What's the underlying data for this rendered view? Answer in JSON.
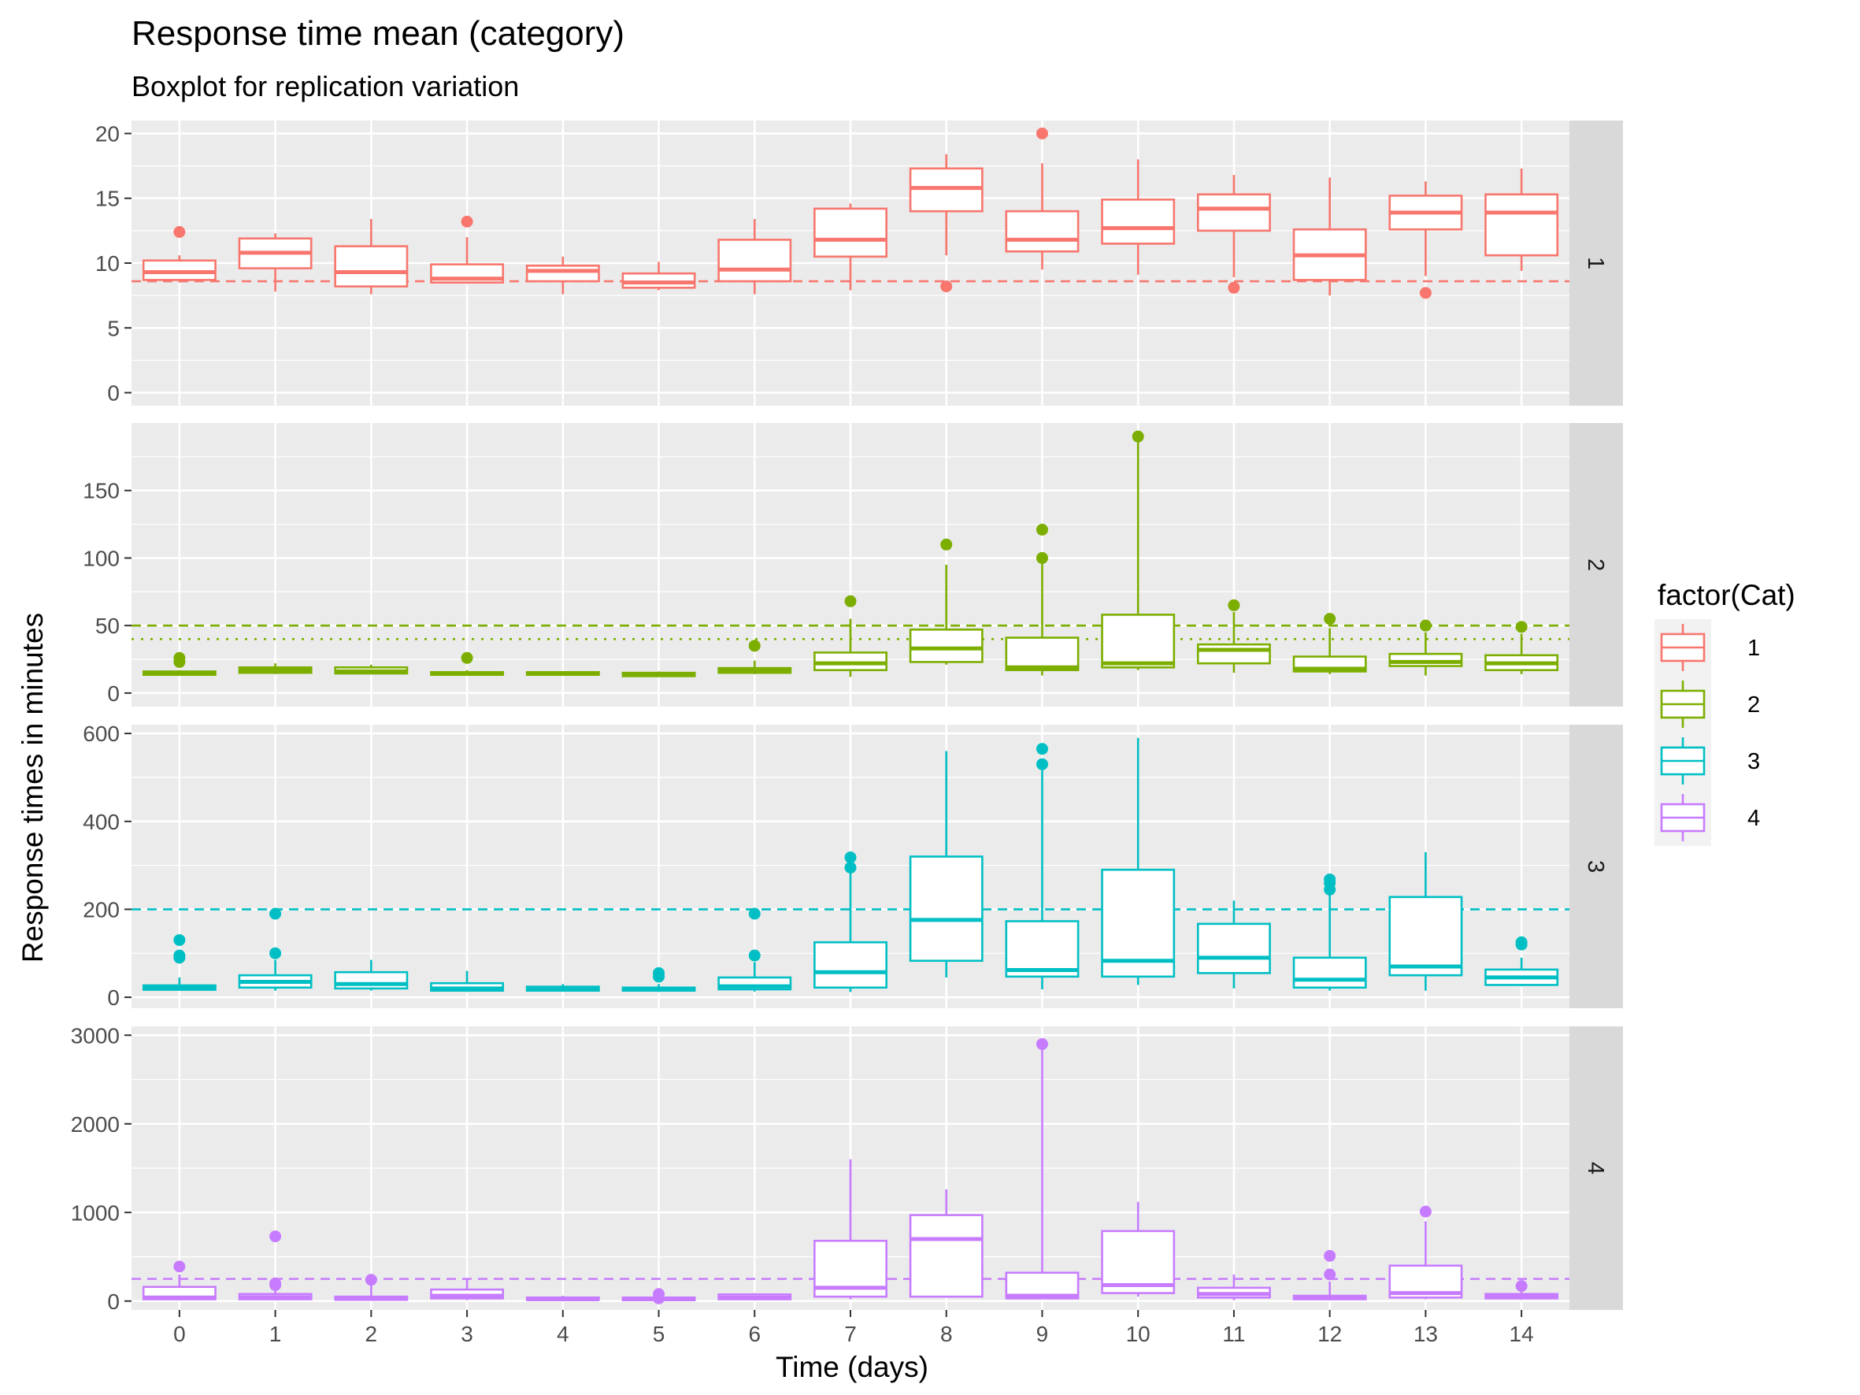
{
  "chart_data": {
    "type": "boxplot",
    "title": "Response time mean (category)",
    "subtitle": "Boxplot for replication variation",
    "xlabel": "Time (days)",
    "ylabel": "Response times in minutes",
    "x_categories": [
      "0",
      "1",
      "2",
      "3",
      "4",
      "5",
      "6",
      "7",
      "8",
      "9",
      "10",
      "11",
      "12",
      "13",
      "14"
    ],
    "legend": {
      "title": "factor(Cat)",
      "placement": "right",
      "entries": [
        "1",
        "2",
        "3",
        "4"
      ]
    },
    "grid": true,
    "facets": [
      {
        "label": "1",
        "color": "#F8766D",
        "ylim": [
          -1,
          21
        ],
        "yticks": [
          0,
          5,
          10,
          15,
          20
        ],
        "reference_lines": [
          {
            "value": 8.6,
            "style": "dashed"
          }
        ],
        "boxes": [
          {
            "x": "0",
            "min": 8.5,
            "q1": 8.7,
            "median": 9.3,
            "q3": 10.2,
            "max": 10.6,
            "outliers": [
              12.4
            ]
          },
          {
            "x": "1",
            "min": 7.8,
            "q1": 9.6,
            "median": 10.8,
            "q3": 11.9,
            "max": 12.3,
            "outliers": []
          },
          {
            "x": "2",
            "min": 7.6,
            "q1": 8.2,
            "median": 9.3,
            "q3": 11.3,
            "max": 13.4,
            "outliers": []
          },
          {
            "x": "3",
            "min": 8.4,
            "q1": 8.5,
            "median": 8.8,
            "q3": 9.9,
            "max": 12.0,
            "outliers": [
              13.2
            ]
          },
          {
            "x": "4",
            "min": 7.6,
            "q1": 8.6,
            "median": 9.4,
            "q3": 9.8,
            "max": 10.5,
            "outliers": []
          },
          {
            "x": "5",
            "min": 7.9,
            "q1": 8.1,
            "median": 8.5,
            "q3": 9.2,
            "max": 10.1,
            "outliers": []
          },
          {
            "x": "6",
            "min": 7.6,
            "q1": 8.6,
            "median": 9.5,
            "q3": 11.8,
            "max": 13.4,
            "outliers": []
          },
          {
            "x": "7",
            "min": 7.9,
            "q1": 10.5,
            "median": 11.8,
            "q3": 14.2,
            "max": 14.6,
            "outliers": []
          },
          {
            "x": "8",
            "min": 10.6,
            "q1": 14.0,
            "median": 15.8,
            "q3": 17.3,
            "max": 18.4,
            "outliers": [
              8.2
            ]
          },
          {
            "x": "9",
            "min": 9.5,
            "q1": 10.9,
            "median": 11.8,
            "q3": 14.0,
            "max": 17.7,
            "outliers": [
              20.0
            ]
          },
          {
            "x": "10",
            "min": 9.1,
            "q1": 11.5,
            "median": 12.7,
            "q3": 14.9,
            "max": 18.0,
            "outliers": []
          },
          {
            "x": "11",
            "min": 8.9,
            "q1": 12.5,
            "median": 14.2,
            "q3": 15.3,
            "max": 16.8,
            "outliers": [
              8.1
            ]
          },
          {
            "x": "12",
            "min": 7.5,
            "q1": 8.7,
            "median": 10.6,
            "q3": 12.6,
            "max": 16.6,
            "outliers": []
          },
          {
            "x": "13",
            "min": 9.0,
            "q1": 12.6,
            "median": 13.9,
            "q3": 15.2,
            "max": 16.3,
            "outliers": [
              7.7
            ]
          },
          {
            "x": "14",
            "min": 9.4,
            "q1": 10.6,
            "median": 13.9,
            "q3": 15.3,
            "max": 17.3,
            "outliers": []
          }
        ]
      },
      {
        "label": "2",
        "color": "#7CAE00",
        "ylim": [
          -10,
          200
        ],
        "yticks": [
          0,
          50,
          100,
          150
        ],
        "reference_lines": [
          {
            "value": 50,
            "style": "dashed"
          },
          {
            "value": 40,
            "style": "dotted"
          }
        ],
        "boxes": [
          {
            "x": "0",
            "min": 13,
            "q1": 13.5,
            "median": 15,
            "q3": 16,
            "max": 17,
            "outliers": [
              23,
              26
            ]
          },
          {
            "x": "1",
            "min": 14,
            "q1": 15,
            "median": 17,
            "q3": 19,
            "max": 22,
            "outliers": []
          },
          {
            "x": "2",
            "min": 14,
            "q1": 14.5,
            "median": 16,
            "q3": 19,
            "max": 21,
            "outliers": []
          },
          {
            "x": "3",
            "min": 13,
            "q1": 13.5,
            "median": 14.5,
            "q3": 15.5,
            "max": 17,
            "outliers": [
              26
            ]
          },
          {
            "x": "4",
            "min": 13,
            "q1": 13.5,
            "median": 14.5,
            "q3": 15.5,
            "max": 16,
            "outliers": []
          },
          {
            "x": "5",
            "min": 12,
            "q1": 12.5,
            "median": 14,
            "q3": 15,
            "max": 16,
            "outliers": []
          },
          {
            "x": "6",
            "min": 14,
            "q1": 15,
            "median": 17,
            "q3": 18.5,
            "max": 24,
            "outliers": [
              35
            ]
          },
          {
            "x": "7",
            "min": 12,
            "q1": 17,
            "median": 22,
            "q3": 30,
            "max": 55,
            "outliers": [
              68
            ]
          },
          {
            "x": "8",
            "min": 21,
            "q1": 23,
            "median": 33,
            "q3": 47,
            "max": 95,
            "outliers": [
              110
            ]
          },
          {
            "x": "9",
            "min": 13,
            "q1": 17,
            "median": 19,
            "q3": 41,
            "max": 98,
            "outliers": [
              100,
              121
            ]
          },
          {
            "x": "10",
            "min": 17,
            "q1": 19,
            "median": 22,
            "q3": 58,
            "max": 189,
            "outliers": [
              190
            ]
          },
          {
            "x": "11",
            "min": 15,
            "q1": 22,
            "median": 32,
            "q3": 36,
            "max": 60,
            "outliers": [
              65
            ]
          },
          {
            "x": "12",
            "min": 14,
            "q1": 16,
            "median": 18,
            "q3": 27,
            "max": 48,
            "outliers": [
              55
            ]
          },
          {
            "x": "13",
            "min": 13,
            "q1": 20,
            "median": 23,
            "q3": 29,
            "max": 45,
            "outliers": [
              50
            ]
          },
          {
            "x": "14",
            "min": 14,
            "q1": 17,
            "median": 22,
            "q3": 28,
            "max": 44,
            "outliers": [
              49
            ]
          }
        ]
      },
      {
        "label": "3",
        "color": "#00BFC4",
        "ylim": [
          -25,
          620
        ],
        "yticks": [
          0,
          200,
          400,
          600
        ],
        "reference_lines": [
          {
            "value": 200,
            "style": "dashed"
          }
        ],
        "boxes": [
          {
            "x": "0",
            "min": 15,
            "q1": 17,
            "median": 22,
            "q3": 27,
            "max": 45,
            "outliers": [
              90,
              95,
              130
            ]
          },
          {
            "x": "1",
            "min": 15,
            "q1": 22,
            "median": 35,
            "q3": 50,
            "max": 85,
            "outliers": [
              100,
              190
            ]
          },
          {
            "x": "2",
            "min": 15,
            "q1": 20,
            "median": 30,
            "q3": 57,
            "max": 85,
            "outliers": []
          },
          {
            "x": "3",
            "min": 12,
            "q1": 15,
            "median": 20,
            "q3": 32,
            "max": 60,
            "outliers": []
          },
          {
            "x": "4",
            "min": 13,
            "q1": 15,
            "median": 20,
            "q3": 24,
            "max": 30,
            "outliers": []
          },
          {
            "x": "5",
            "min": 12,
            "q1": 15,
            "median": 18,
            "q3": 22,
            "max": 30,
            "outliers": [
              47,
              55
            ]
          },
          {
            "x": "6",
            "min": 13,
            "q1": 18,
            "median": 25,
            "q3": 45,
            "max": 80,
            "outliers": [
              95,
              190
            ]
          },
          {
            "x": "7",
            "min": 12,
            "q1": 22,
            "median": 57,
            "q3": 125,
            "max": 285,
            "outliers": [
              295,
              318
            ]
          },
          {
            "x": "8",
            "min": 45,
            "q1": 83,
            "median": 176,
            "q3": 320,
            "max": 560,
            "outliers": []
          },
          {
            "x": "9",
            "min": 18,
            "q1": 47,
            "median": 62,
            "q3": 173,
            "max": 520,
            "outliers": [
              530,
              565
            ]
          },
          {
            "x": "10",
            "min": 28,
            "q1": 47,
            "median": 83,
            "q3": 290,
            "max": 590,
            "outliers": []
          },
          {
            "x": "11",
            "min": 20,
            "q1": 55,
            "median": 90,
            "q3": 167,
            "max": 220,
            "outliers": []
          },
          {
            "x": "12",
            "min": 15,
            "q1": 22,
            "median": 40,
            "q3": 90,
            "max": 235,
            "outliers": [
              245,
              260,
              268
            ]
          },
          {
            "x": "13",
            "min": 15,
            "q1": 50,
            "median": 70,
            "q3": 228,
            "max": 330,
            "outliers": []
          },
          {
            "x": "14",
            "min": 25,
            "q1": 28,
            "median": 45,
            "q3": 63,
            "max": 90,
            "outliers": [
              120,
              125
            ]
          }
        ]
      },
      {
        "label": "4",
        "color": "#C77CFF",
        "ylim": [
          -100,
          3100
        ],
        "yticks": [
          0,
          1000,
          2000,
          3000
        ],
        "reference_lines": [
          {
            "value": 250,
            "style": "dashed"
          }
        ],
        "boxes": [
          {
            "x": "0",
            "min": 10,
            "q1": 20,
            "median": 40,
            "q3": 160,
            "max": 300,
            "outliers": [
              390
            ]
          },
          {
            "x": "1",
            "min": 10,
            "q1": 20,
            "median": 45,
            "q3": 80,
            "max": 150,
            "outliers": [
              180,
              200,
              730
            ]
          },
          {
            "x": "2",
            "min": 10,
            "q1": 15,
            "median": 25,
            "q3": 50,
            "max": 230,
            "outliers": [
              240
            ]
          },
          {
            "x": "3",
            "min": 10,
            "q1": 30,
            "median": 60,
            "q3": 130,
            "max": 260,
            "outliers": []
          },
          {
            "x": "4",
            "min": 10,
            "q1": 15,
            "median": 20,
            "q3": 40,
            "max": 60,
            "outliers": []
          },
          {
            "x": "5",
            "min": 5,
            "q1": 10,
            "median": 20,
            "q3": 40,
            "max": 60,
            "outliers": [
              30,
              80
            ]
          },
          {
            "x": "6",
            "min": 10,
            "q1": 20,
            "median": 40,
            "q3": 75,
            "max": 90,
            "outliers": []
          },
          {
            "x": "7",
            "min": 20,
            "q1": 50,
            "median": 150,
            "q3": 680,
            "max": 1600,
            "outliers": []
          },
          {
            "x": "8",
            "min": 40,
            "q1": 50,
            "median": 700,
            "q3": 970,
            "max": 1260,
            "outliers": []
          },
          {
            "x": "9",
            "min": 20,
            "q1": 30,
            "median": 60,
            "q3": 320,
            "max": 2880,
            "outliers": [
              2900
            ]
          },
          {
            "x": "10",
            "min": 50,
            "q1": 90,
            "median": 180,
            "q3": 790,
            "max": 1120,
            "outliers": []
          },
          {
            "x": "11",
            "min": 10,
            "q1": 40,
            "median": 80,
            "q3": 150,
            "max": 300,
            "outliers": []
          },
          {
            "x": "12",
            "min": 10,
            "q1": 20,
            "median": 40,
            "q3": 60,
            "max": 220,
            "outliers": [
              300,
              510
            ]
          },
          {
            "x": "13",
            "min": 20,
            "q1": 40,
            "median": 90,
            "q3": 400,
            "max": 900,
            "outliers": [
              1010
            ]
          },
          {
            "x": "14",
            "min": 15,
            "q1": 30,
            "median": 50,
            "q3": 80,
            "max": 110,
            "outliers": [
              170
            ]
          }
        ]
      }
    ]
  }
}
